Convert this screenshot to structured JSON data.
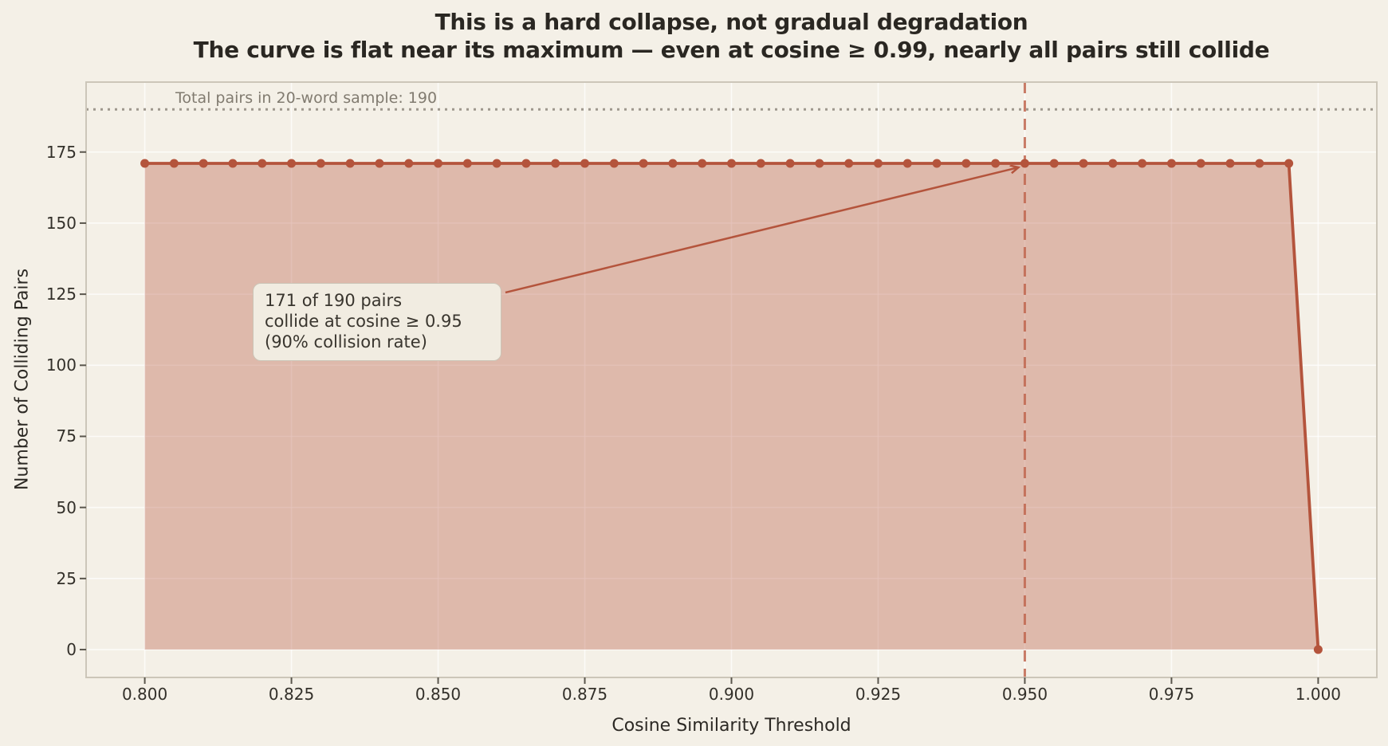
{
  "title": {
    "line1": "This is a hard collapse, not gradual degradation",
    "line2": "The curve is flat near its maximum — even at cosine ≥ 0.99, nearly all pairs still collide"
  },
  "chart_data": {
    "type": "area",
    "title": "This is a hard collapse, not gradual degradation\nThe curve is flat near its maximum — even at cosine ≥ 0.99, nearly all pairs still collide",
    "xlabel": "Cosine Similarity Threshold",
    "ylabel": "Number of Colliding Pairs",
    "x": [
      0.8,
      0.805,
      0.81,
      0.815,
      0.82,
      0.825,
      0.83,
      0.835,
      0.84,
      0.845,
      0.85,
      0.855,
      0.86,
      0.865,
      0.87,
      0.875,
      0.88,
      0.885,
      0.89,
      0.895,
      0.9,
      0.905,
      0.91,
      0.915,
      0.92,
      0.925,
      0.93,
      0.935,
      0.94,
      0.945,
      0.95,
      0.955,
      0.96,
      0.965,
      0.97,
      0.975,
      0.98,
      0.985,
      0.99,
      0.995,
      1.0
    ],
    "y": [
      171,
      171,
      171,
      171,
      171,
      171,
      171,
      171,
      171,
      171,
      171,
      171,
      171,
      171,
      171,
      171,
      171,
      171,
      171,
      171,
      171,
      171,
      171,
      171,
      171,
      171,
      171,
      171,
      171,
      171,
      171,
      171,
      171,
      171,
      171,
      171,
      171,
      171,
      171,
      171,
      0
    ],
    "xlim": [
      0.79,
      1.01
    ],
    "ylim": [
      -9.8,
      199.6
    ],
    "grid": true,
    "legend": "none",
    "xticks": {
      "values": [
        0.8,
        0.825,
        0.85,
        0.875,
        0.9,
        0.925,
        0.95,
        0.975,
        1.0
      ],
      "labels": [
        "0.800",
        "0.825",
        "0.850",
        "0.875",
        "0.900",
        "0.925",
        "0.950",
        "0.975",
        "1.000"
      ]
    },
    "yticks": {
      "values": [
        0,
        25,
        50,
        75,
        100,
        125,
        150,
        175
      ],
      "labels": [
        "0",
        "25",
        "50",
        "75",
        "100",
        "125",
        "150",
        "175"
      ]
    },
    "total_line": {
      "value": 190,
      "style": "dotted",
      "label": "Total pairs in 20-word sample: 190"
    },
    "threshold_line": {
      "value": 0.95,
      "style": "dashed"
    },
    "annotation": {
      "line1": "171 of 190 pairs",
      "line2": "collide at cosine ≥ 0.95",
      "line3": "(90% collision rate)",
      "target": {
        "x": 0.95,
        "y": 171
      }
    }
  },
  "colors": {
    "background": "#f4f0e7",
    "line": "#b4543c",
    "fill": "#b4543c",
    "fill_opacity": 0.35,
    "threshold_dash": "#c0654e",
    "total_dotted": "#9e978d",
    "grid": "#ffffff",
    "spine": "#ccc6b9",
    "tick_mark": "#5a564d",
    "annotation_bg": "#f1ece1",
    "annotation_border": "#cbc4b6"
  }
}
